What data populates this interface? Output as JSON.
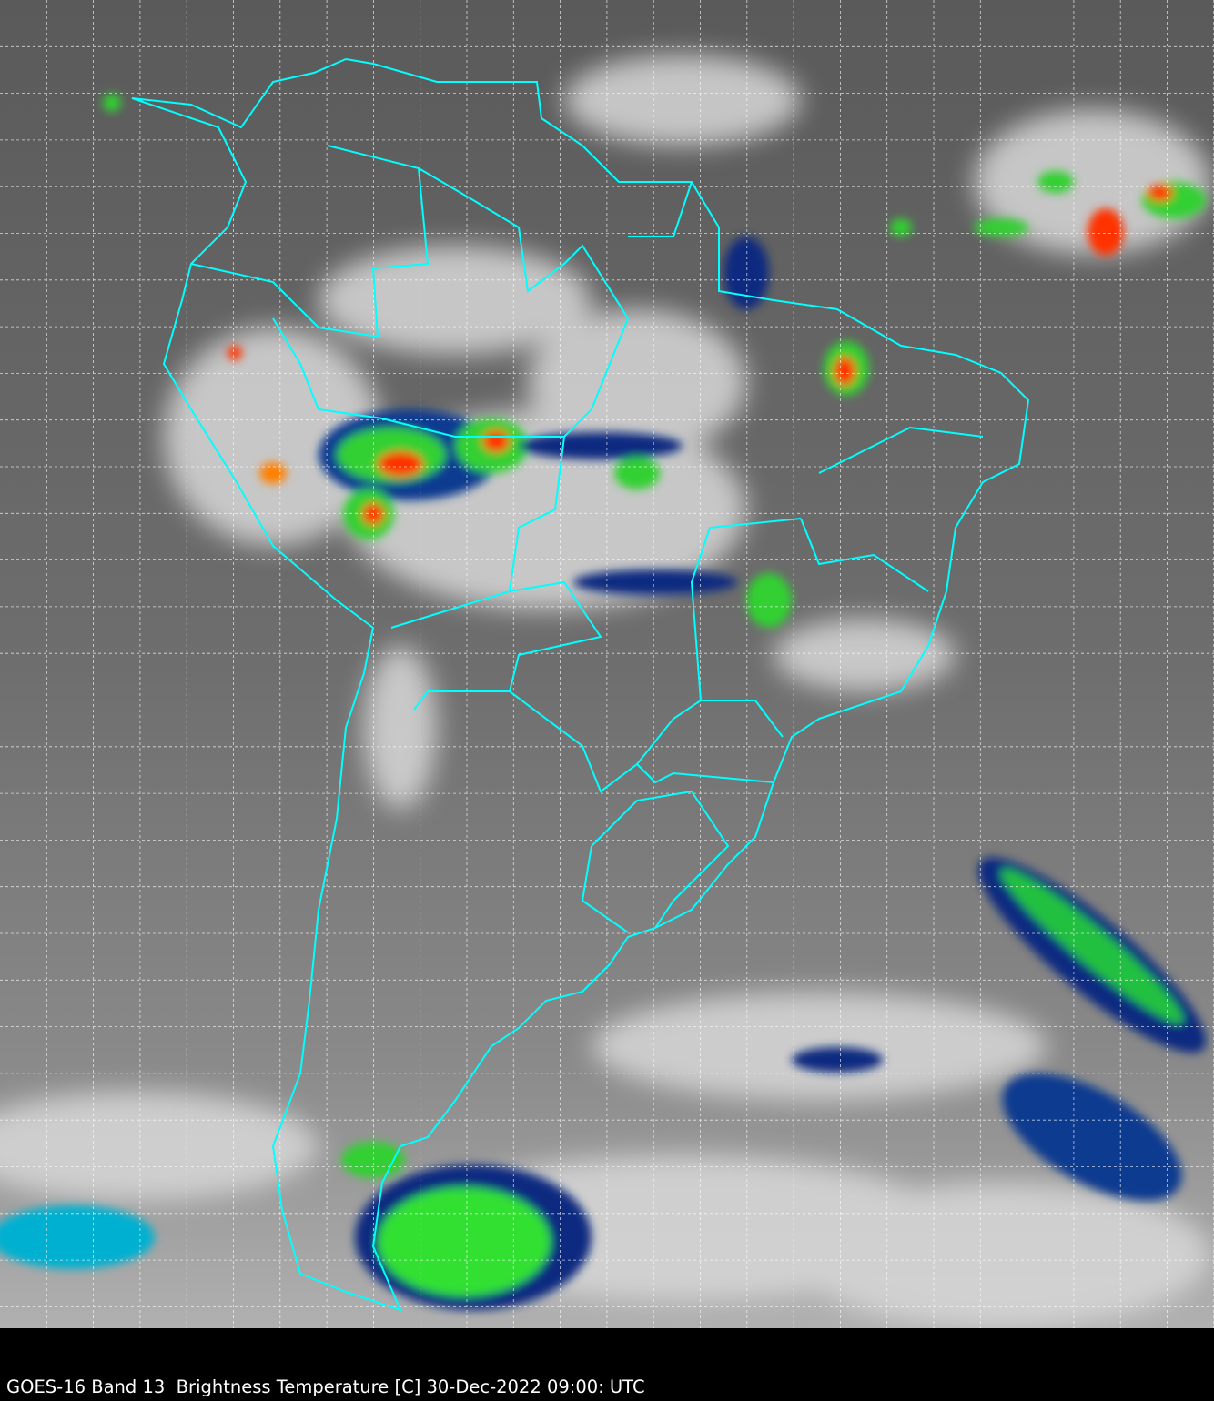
{
  "caption": "GOES-16 Band 13  Brightness Temperature [C] 30-Dec-2022 09:00: UTC",
  "colors": {
    "border": "#00ffff",
    "grid": "#ffffff",
    "background": "#000000",
    "cold_cloud_scale": [
      "#00e0ff",
      "#0a2a80",
      "#00ff40",
      "#ffff00",
      "#ff2000"
    ]
  }
}
